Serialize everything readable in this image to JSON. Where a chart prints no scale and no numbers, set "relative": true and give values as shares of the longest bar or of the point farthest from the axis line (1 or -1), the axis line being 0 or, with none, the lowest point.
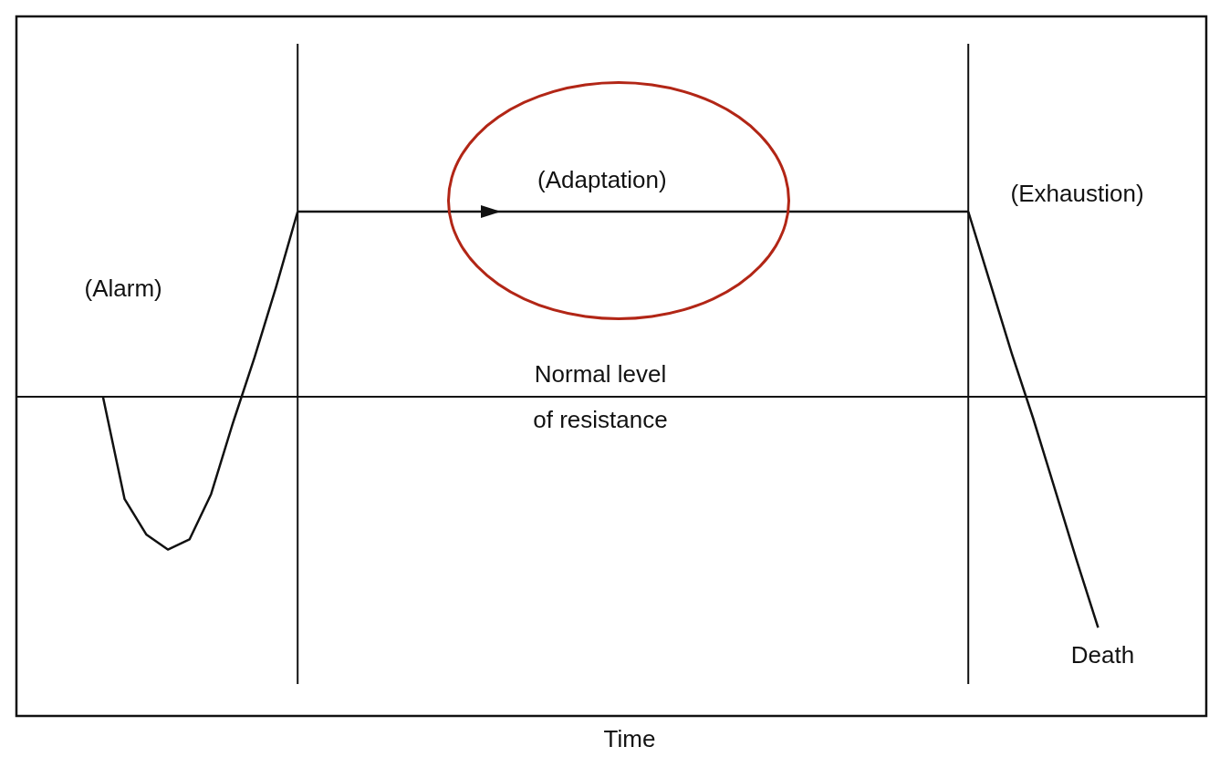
{
  "chart_data": {
    "type": "line",
    "relative": true,
    "xlabel": "Time",
    "marker": "none",
    "line_style": "solid",
    "categories": [
      null,
      null,
      null,
      null,
      null,
      null,
      null,
      null,
      null,
      null,
      null,
      null,
      null,
      null,
      null,
      null,
      null,
      null,
      null,
      null,
      null,
      null,
      null,
      null,
      null,
      null,
      null,
      null,
      null,
      null,
      null,
      null,
      null,
      null,
      null,
      null,
      null,
      null,
      null,
      null,
      null,
      null,
      null,
      null,
      null,
      null,
      null,
      null,
      null,
      null,
      null,
      null,
      null,
      null,
      null,
      null
    ],
    "series": [
      {
        "color": "#111111",
        "values": [
          null,
          null,
          null,
          null,
          0.633,
          0.43,
          0.36,
          0.33,
          0.35,
          0.44,
          0.58,
          0.71,
          0.85,
          1,
          null,
          null,
          null,
          null,
          null,
          null,
          null,
          null,
          null,
          null,
          null,
          null,
          null,
          null,
          null,
          null,
          null,
          null,
          null,
          null,
          null,
          null,
          null,
          null,
          null,
          null,
          null,
          null,
          null,
          null,
          null,
          null,
          null,
          null,
          null,
          null,
          null,
          null,
          null,
          null,
          null,
          null
        ]
      },
      {
        "color": "#111111",
        "values": [
          null,
          null,
          null,
          null,
          null,
          null,
          null,
          null,
          null,
          null,
          null,
          null,
          null,
          1,
          1,
          1,
          1,
          1,
          1,
          1,
          1,
          1,
          1,
          1,
          1,
          1,
          1,
          1,
          1,
          1,
          1,
          1,
          1,
          1,
          1,
          1,
          1,
          1,
          1,
          1,
          1,
          1,
          1,
          1,
          1,
          null,
          null,
          null,
          null,
          null,
          null,
          null,
          null,
          null,
          null,
          null
        ]
      },
      {
        "color": "#111111",
        "values": [
          null,
          null,
          null,
          null,
          null,
          null,
          null,
          null,
          null,
          null,
          null,
          null,
          null,
          null,
          null,
          null,
          null,
          null,
          null,
          null,
          null,
          null,
          null,
          null,
          null,
          null,
          null,
          null,
          null,
          null,
          null,
          null,
          null,
          null,
          null,
          null,
          null,
          null,
          null,
          null,
          null,
          null,
          null,
          null,
          1,
          0.86,
          0.72,
          0.59,
          0.45,
          0.31,
          0.175,
          null,
          null,
          null,
          null,
          null
        ]
      }
    ],
    "ref_lines": [
      {
        "axis": "y",
        "value": 0.633,
        "label": "Normal level of resistance",
        "color": "#111111"
      }
    ],
    "annotations": [
      "(Alarm)",
      "(Adaptation)",
      "(Exhaustion)",
      "Death"
    ]
  }
}
